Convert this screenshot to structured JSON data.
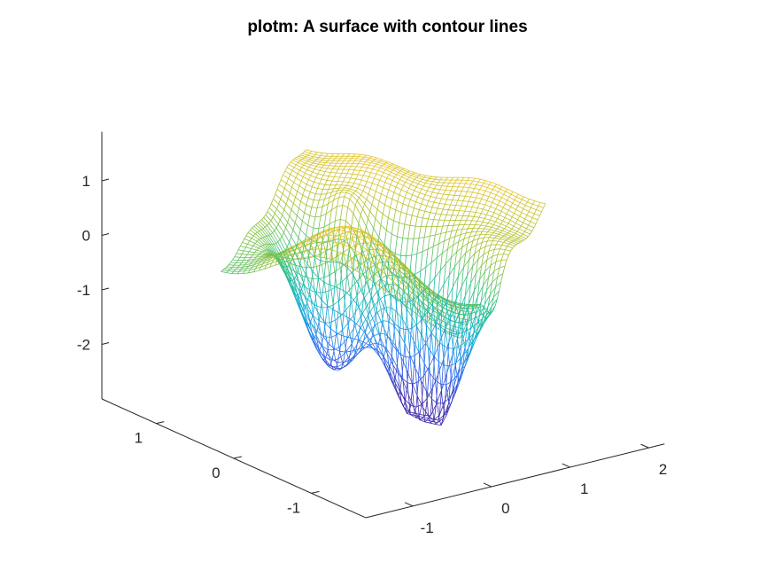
{
  "chart_data": {
    "type": "surface",
    "title": "plotm: A surface with contour lines",
    "xlabel": "",
    "ylabel": "",
    "zlabel": "",
    "xlim": [
      -1.6,
      2.2
    ],
    "ylim": [
      -1.7,
      1.7
    ],
    "zlim": [
      -3.0,
      1.9
    ],
    "x_ticks": [
      -1,
      0,
      1,
      2
    ],
    "x_tick_labels": [
      "-1",
      "0",
      "1",
      "2"
    ],
    "y_ticks": [
      -1,
      0,
      1
    ],
    "y_tick_labels": [
      "-1",
      "0",
      "1"
    ],
    "z_ticks": [
      -2,
      -1,
      0,
      1
    ],
    "z_tick_labels": [
      "-2",
      "-1",
      "0",
      "1"
    ],
    "grid": false,
    "colormap": "parula",
    "colormap_colors": [
      "#3e26a8",
      "#2d6af4",
      "#13aed8",
      "#2cc38c",
      "#a6c131",
      "#f9c72d",
      "#f9fb0e"
    ],
    "style": "mesh (wireframe)"
  }
}
